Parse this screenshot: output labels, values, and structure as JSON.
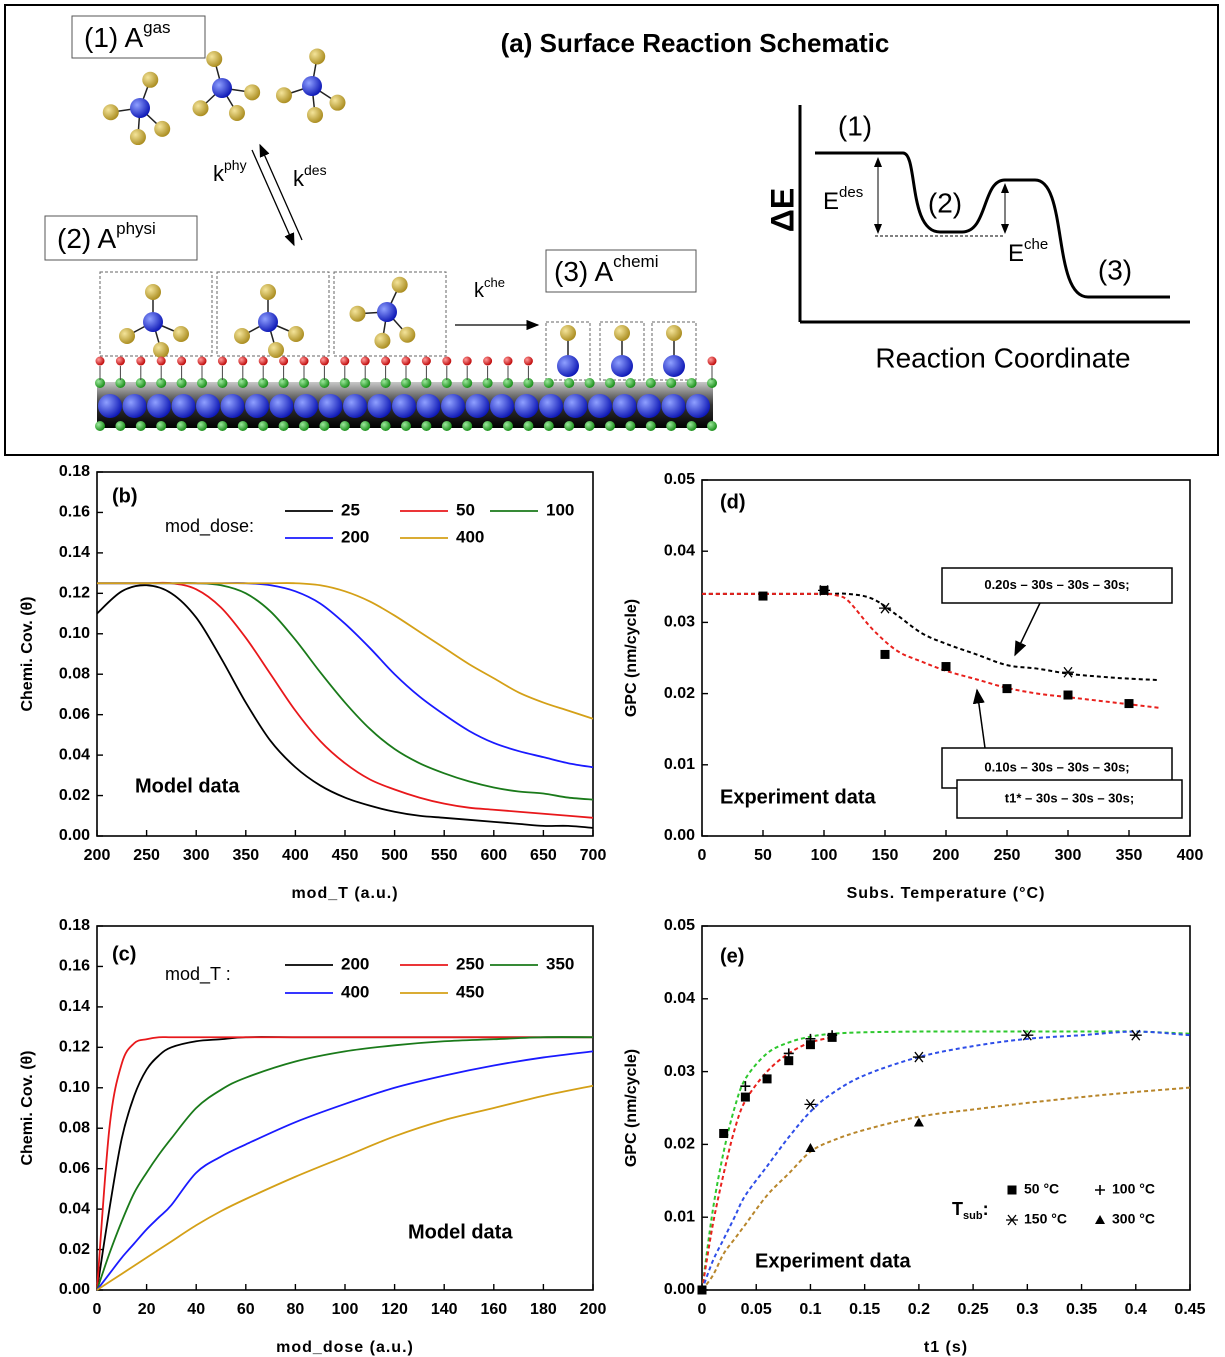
{
  "schematic": {
    "title": "(a) Surface Reaction Schematic",
    "species": [
      {
        "label": "(1) A",
        "sup": "gas"
      },
      {
        "label": "(2) A",
        "sup": "physi"
      },
      {
        "label": "(3) A",
        "sup": "chemi"
      }
    ],
    "rates": [
      {
        "label": "k",
        "sup": "phy"
      },
      {
        "label": "k",
        "sup": "des"
      },
      {
        "label": "k",
        "sup": "che"
      }
    ],
    "energy": {
      "axis_y": "ΔE",
      "axis_x": "Reaction Coordinate",
      "states": [
        "(1)",
        "(2)",
        "(3)"
      ],
      "barriers": [
        {
          "label": "E",
          "sup": "des"
        },
        {
          "label": "E",
          "sup": "che"
        }
      ]
    }
  },
  "chart_data": [
    {
      "type": "line",
      "panel_label": "(b)",
      "annotation": "Model data",
      "x_label": "mod_T (a.u.)",
      "y_label": "Chemi. Cov. (θ)",
      "legend_title": "mod_dose:",
      "xlim": [
        200,
        700
      ],
      "xticks": [
        200,
        250,
        300,
        350,
        400,
        450,
        500,
        550,
        600,
        650,
        700
      ],
      "ylim": [
        0,
        0.18
      ],
      "yticks": [
        {
          "value": 0,
          "label": "0.00"
        },
        0.02,
        0.04,
        0.06,
        0.08,
        {
          "value": 0.1,
          "label": "0.10"
        },
        0.12,
        0.14,
        0.16,
        0.18
      ],
      "x": [
        200,
        225,
        250,
        275,
        300,
        325,
        350,
        375,
        400,
        425,
        450,
        475,
        500,
        525,
        550,
        575,
        600,
        625,
        650,
        675,
        700
      ],
      "series": [
        {
          "name": "25",
          "color": "#000000",
          "values": [
            0.11,
            0.121,
            0.124,
            0.12,
            0.108,
            0.088,
            0.066,
            0.047,
            0.034,
            0.025,
            0.019,
            0.015,
            0.012,
            0.01,
            0.009,
            0.008,
            0.007,
            0.006,
            0.005,
            0.005,
            0.004
          ]
        },
        {
          "name": "50",
          "color": "#e8181b",
          "values": [
            0.125,
            0.125,
            0.125,
            0.125,
            0.122,
            0.113,
            0.098,
            0.08,
            0.062,
            0.047,
            0.036,
            0.028,
            0.023,
            0.019,
            0.016,
            0.014,
            0.013,
            0.012,
            0.011,
            0.01,
            0.009
          ]
        },
        {
          "name": "100",
          "color": "#1a7a1a",
          "values": [
            0.125,
            0.125,
            0.125,
            0.125,
            0.125,
            0.124,
            0.12,
            0.111,
            0.097,
            0.081,
            0.066,
            0.053,
            0.043,
            0.036,
            0.031,
            0.027,
            0.024,
            0.022,
            0.021,
            0.019,
            0.018
          ]
        },
        {
          "name": "200",
          "color": "#1a1aff",
          "values": [
            0.125,
            0.125,
            0.125,
            0.125,
            0.125,
            0.125,
            0.125,
            0.124,
            0.121,
            0.115,
            0.105,
            0.093,
            0.08,
            0.069,
            0.06,
            0.052,
            0.046,
            0.042,
            0.039,
            0.036,
            0.034
          ]
        },
        {
          "name": "400",
          "color": "#d4a017",
          "values": [
            0.125,
            0.125,
            0.125,
            0.125,
            0.125,
            0.125,
            0.125,
            0.125,
            0.125,
            0.124,
            0.121,
            0.116,
            0.109,
            0.101,
            0.093,
            0.085,
            0.078,
            0.071,
            0.066,
            0.062,
            0.058
          ]
        }
      ]
    },
    {
      "type": "scatter",
      "panel_label": "(d)",
      "annotation": "Experiment data",
      "x_label": "Subs. Temperature (°C)",
      "y_label": "GPC (nm/cycle)",
      "boxes": [
        "0.20s – 30s – 30s – 30s;",
        "0.10s – 30s – 30s – 30s;"
      ],
      "xlim": [
        0,
        400
      ],
      "xticks": [
        0,
        50,
        100,
        150,
        200,
        250,
        300,
        350,
        400
      ],
      "ylim": [
        0,
        0.05
      ],
      "yticks": [
        {
          "value": 0,
          "label": "0.00"
        },
        0.01,
        0.02,
        0.03,
        0.04,
        0.05
      ],
      "series": [
        {
          "mode": "dashed",
          "color": "#000000",
          "x": [
            0,
            50,
            100,
            120,
            140,
            160,
            180,
            200,
            225,
            250,
            275,
            300,
            325,
            350,
            375
          ],
          "values": [
            0.034,
            0.034,
            0.034,
            0.034,
            0.0333,
            0.031,
            0.0285,
            0.027,
            0.0255,
            0.024,
            0.0235,
            0.0228,
            0.0224,
            0.0221,
            0.0219
          ]
        },
        {
          "mode": "dashed",
          "color": "#e8201c",
          "x": [
            0,
            50,
            100,
            110,
            120,
            140,
            160,
            180,
            200,
            225,
            250,
            275,
            300,
            325,
            350,
            375
          ],
          "values": [
            0.034,
            0.034,
            0.034,
            0.0338,
            0.033,
            0.029,
            0.026,
            0.0245,
            0.0232,
            0.022,
            0.0208,
            0.02,
            0.0195,
            0.019,
            0.0185,
            0.018
          ]
        },
        {
          "mode": "markers",
          "marker": "star",
          "color": "#000000",
          "x": [
            100,
            150,
            300
          ],
          "values": [
            0.0345,
            0.032,
            0.023
          ]
        },
        {
          "mode": "markers",
          "marker": "square",
          "color": "#000000",
          "x": [
            50,
            100,
            150,
            200,
            250,
            300,
            350
          ],
          "values": [
            0.0337,
            0.0345,
            0.0255,
            0.0238,
            0.0207,
            0.0198,
            0.0186
          ]
        }
      ]
    },
    {
      "type": "line",
      "panel_label": "(c)",
      "annotation": "Model data",
      "x_label": "mod_dose (a.u.)",
      "y_label": "Chemi. Cov. (θ)",
      "legend_title": "mod_T :",
      "xlim": [
        0,
        200
      ],
      "xticks": [
        0,
        20,
        40,
        60,
        80,
        100,
        120,
        140,
        160,
        180,
        200
      ],
      "ylim": [
        0,
        0.18
      ],
      "yticks": [
        {
          "value": 0,
          "label": "0.00"
        },
        0.02,
        0.04,
        0.06,
        0.08,
        {
          "value": 0.1,
          "label": "0.10"
        },
        0.12,
        0.14,
        0.16,
        0.18
      ],
      "x": [
        0,
        5,
        10,
        15,
        20,
        25,
        30,
        40,
        50,
        60,
        80,
        100,
        120,
        140,
        160,
        180,
        200
      ],
      "series": [
        {
          "name": "200",
          "color": "#000000",
          "values": [
            0,
            0.04,
            0.075,
            0.096,
            0.109,
            0.116,
            0.12,
            0.123,
            0.124,
            0.125,
            0.125,
            0.125,
            0.125,
            0.125,
            0.125,
            0.125,
            0.125
          ]
        },
        {
          "name": "250",
          "color": "#e8181b",
          "values": [
            0,
            0.08,
            0.112,
            0.122,
            0.124,
            0.125,
            0.125,
            0.125,
            0.125,
            0.125,
            0.125,
            0.125,
            0.125,
            0.125,
            0.125,
            0.125,
            0.125
          ]
        },
        {
          "name": "350",
          "color": "#1a7a1a",
          "values": [
            0,
            0.018,
            0.034,
            0.048,
            0.058,
            0.067,
            0.075,
            0.09,
            0.099,
            0.105,
            0.113,
            0.118,
            0.121,
            0.123,
            0.124,
            0.125,
            0.125
          ]
        },
        {
          "name": "400",
          "color": "#1a1aff",
          "values": [
            0,
            0.008,
            0.016,
            0.023,
            0.03,
            0.036,
            0.042,
            0.058,
            0.066,
            0.072,
            0.083,
            0.092,
            0.1,
            0.106,
            0.111,
            0.115,
            0.118
          ]
        },
        {
          "name": "450",
          "color": "#d4a017",
          "values": [
            0,
            0.004,
            0.008,
            0.012,
            0.016,
            0.02,
            0.024,
            0.032,
            0.039,
            0.045,
            0.056,
            0.066,
            0.076,
            0.084,
            0.09,
            0.096,
            0.101
          ]
        }
      ]
    },
    {
      "type": "scatter",
      "panel_label": "(e)",
      "annotation": "Experiment data",
      "x_label": "t1 (s)",
      "y_label": "GPC (nm/cycle)",
      "boxes": [
        "t1* – 30s – 30s – 30s;"
      ],
      "legend_title": {
        "label": "T",
        "sub": "sub",
        "suffix": ":"
      },
      "xlim": [
        0,
        0.45
      ],
      "xticks": [
        0,
        0.05,
        0.1,
        0.15,
        0.2,
        0.25,
        0.3,
        0.35,
        0.4,
        0.45
      ],
      "ylim": [
        0,
        0.05
      ],
      "yticks": [
        {
          "value": 0,
          "label": "0.00"
        },
        0.01,
        0.02,
        0.03,
        0.04,
        0.05
      ],
      "series": [
        {
          "mode": "dashed",
          "color": "#2ec82e",
          "x": [
            0,
            0.01,
            0.02,
            0.03,
            0.04,
            0.06,
            0.08,
            0.1,
            0.12,
            0.15,
            0.2,
            0.25,
            0.3,
            0.35,
            0.4,
            0.45
          ],
          "values": [
            0,
            0.011,
            0.019,
            0.025,
            0.029,
            0.0325,
            0.034,
            0.0348,
            0.0352,
            0.0354,
            0.0355,
            0.0355,
            0.0355,
            0.0355,
            0.0355,
            0.0352
          ]
        },
        {
          "mode": "dashed",
          "color": "#e8201c",
          "x": [
            0,
            0.01,
            0.02,
            0.03,
            0.04,
            0.06,
            0.08,
            0.1,
            0.12
          ],
          "values": [
            0,
            0.009,
            0.016,
            0.022,
            0.026,
            0.03,
            0.0325,
            0.034,
            0.0347
          ]
        },
        {
          "mode": "dashed",
          "color": "#2e4ee8",
          "x": [
            0,
            0.01,
            0.02,
            0.03,
            0.04,
            0.06,
            0.08,
            0.1,
            0.12,
            0.15,
            0.2,
            0.25,
            0.3,
            0.35,
            0.4,
            0.45
          ],
          "values": [
            0,
            0.004,
            0.007,
            0.01,
            0.013,
            0.017,
            0.021,
            0.0245,
            0.027,
            0.0295,
            0.032,
            0.0335,
            0.0345,
            0.035,
            0.0355,
            0.035
          ]
        },
        {
          "mode": "dashed",
          "color": "#b8862b",
          "x": [
            0,
            0.01,
            0.02,
            0.03,
            0.04,
            0.06,
            0.08,
            0.1,
            0.12,
            0.15,
            0.2,
            0.25,
            0.3,
            0.35,
            0.4,
            0.45
          ],
          "values": [
            0,
            0.002,
            0.005,
            0.007,
            0.009,
            0.013,
            0.016,
            0.019,
            0.0205,
            0.022,
            0.0238,
            0.0248,
            0.0257,
            0.0265,
            0.0272,
            0.0278
          ]
        },
        {
          "name": "50 °C",
          "mode": "markers",
          "marker": "square",
          "color": "#000000",
          "x": [
            0,
            0.02,
            0.04,
            0.06,
            0.08,
            0.1,
            0.12
          ],
          "values": [
            0,
            0.0215,
            0.0265,
            0.029,
            0.0315,
            0.0337,
            0.0347
          ]
        },
        {
          "name": "100 °C",
          "mode": "markers",
          "marker": "plus",
          "color": "#000000",
          "x": [
            0.04,
            0.08,
            0.1,
            0.12
          ],
          "values": [
            0.028,
            0.0325,
            0.0345,
            0.035
          ]
        },
        {
          "name": "150 °C",
          "mode": "markers",
          "marker": "star",
          "color": "#000000",
          "x": [
            0.1,
            0.2,
            0.3,
            0.4
          ],
          "values": [
            0.0255,
            0.032,
            0.035,
            0.035
          ]
        },
        {
          "name": "300 °C",
          "mode": "markers",
          "marker": "triangle",
          "color": "#000000",
          "x": [
            0.1,
            0.2
          ],
          "values": [
            0.0195,
            0.023
          ]
        }
      ]
    }
  ]
}
